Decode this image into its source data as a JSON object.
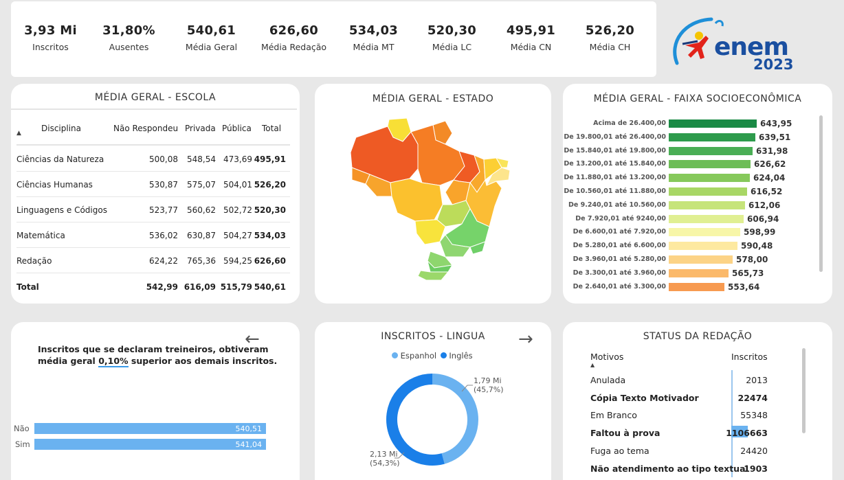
{
  "kpis": [
    {
      "value": "3,93 Mi",
      "label": "Inscritos"
    },
    {
      "value": "31,80%",
      "label": "Ausentes"
    },
    {
      "value": "540,61",
      "label": "Média Geral"
    },
    {
      "value": "626,60",
      "label": "Média Redação"
    },
    {
      "value": "534,03",
      "label": "Média MT"
    },
    {
      "value": "520,30",
      "label": "Média LC"
    },
    {
      "value": "495,91",
      "label": "Média CN"
    },
    {
      "value": "526,20",
      "label": "Média CH"
    }
  ],
  "logo": {
    "brand": "enem",
    "year": "2023"
  },
  "escola": {
    "title": "MÉDIA GERAL - ESCOLA",
    "columns": [
      "Disciplina",
      "Não Respondeu",
      "Privada",
      "Pública",
      "Total"
    ],
    "rows": [
      {
        "disciplina": "Ciências da Natureza",
        "nao": "500,08",
        "privada": "548,54",
        "publica": "473,69",
        "total": "495,91"
      },
      {
        "disciplina": "Ciências Humanas",
        "nao": "530,87",
        "privada": "575,07",
        "publica": "504,01",
        "total": "526,20"
      },
      {
        "disciplina": "Linguagens e Códigos",
        "nao": "523,77",
        "privada": "560,62",
        "publica": "502,72",
        "total": "520,30"
      },
      {
        "disciplina": "Matemática",
        "nao": "536,02",
        "privada": "630,87",
        "publica": "504,27",
        "total": "534,03"
      },
      {
        "disciplina": "Redação",
        "nao": "624,22",
        "privada": "765,36",
        "publica": "594,25",
        "total": "626,60"
      }
    ],
    "total": {
      "disciplina": "Total",
      "nao": "542,99",
      "privada": "616,09",
      "publica": "515,79",
      "total": "540,61"
    }
  },
  "estado": {
    "title": "MÉDIA GERAL - ESTADO"
  },
  "faixa": {
    "title": "MÉDIA GERAL - FAIXA SOCIOECONÔMICA",
    "rows": [
      {
        "label": "Acima de 26.400,00",
        "value": "643,95",
        "num": 643.95,
        "color": "#1a8a45"
      },
      {
        "label": "De 19.800,01 até 26.400,00",
        "value": "639,51",
        "num": 639.51,
        "color": "#2e9b4c"
      },
      {
        "label": "De 15.840,01 até 19.800,00",
        "value": "631,98",
        "num": 631.98,
        "color": "#4aae55"
      },
      {
        "label": "De 13.200,01 até 15.840,00",
        "value": "626,62",
        "num": 626.62,
        "color": "#6dbd57"
      },
      {
        "label": "De 11.880,01 até 13.200,00",
        "value": "624,04",
        "num": 624.04,
        "color": "#86c95b"
      },
      {
        "label": "De 10.560,01 até 11.880,00",
        "value": "616,52",
        "num": 616.52,
        "color": "#a8d765"
      },
      {
        "label": "De 9.240,01 até 10.560,00",
        "value": "612,06",
        "num": 612.06,
        "color": "#c6e47a"
      },
      {
        "label": "De 7.920,01 até 9240,00",
        "value": "606,94",
        "num": 606.94,
        "color": "#e0ef92"
      },
      {
        "label": "De 6.600,01 até 7.920,00",
        "value": "598,99",
        "num": 598.99,
        "color": "#f7f6a8"
      },
      {
        "label": "De 5.280,01 até 6.600,00",
        "value": "590,48",
        "num": 590.48,
        "color": "#fde9a0"
      },
      {
        "label": "De 3.960,01 até 5.280,00",
        "value": "578,00",
        "num": 578.0,
        "color": "#fcd386"
      },
      {
        "label": "De 3.300,01 até 3.960,00",
        "value": "565,73",
        "num": 565.73,
        "color": "#fbb96a"
      },
      {
        "label": "De 2.640,01 até 3.300,00",
        "value": "553,64",
        "num": 553.64,
        "color": "#f79a50"
      }
    ]
  },
  "treineiros": {
    "line1": "Inscritos que se declaram treineiros, obtiveram",
    "line2_pre": "média geral ",
    "line2_pct": "0,10%",
    "line2_post": " superior aos demais inscritos.",
    "bars": [
      {
        "label": "Não",
        "value": "540,51",
        "num": 540.51
      },
      {
        "label": "Sim",
        "value": "541,04",
        "num": 541.04
      }
    ]
  },
  "lingua": {
    "title": "INSCRITOS - LINGUA",
    "legend": [
      {
        "name": "Espanhol",
        "color": "#6ab2f0"
      },
      {
        "name": "Inglês",
        "color": "#1a7fe8"
      }
    ],
    "slices": [
      {
        "name": "Espanhol",
        "value": "1,79 Mi",
        "pct": "(45,7%)",
        "fraction": 0.457,
        "color": "#6ab2f0"
      },
      {
        "name": "Inglês",
        "value": "2,13 Mi",
        "pct": "(54,3%)",
        "fraction": 0.543,
        "color": "#1a7fe8"
      }
    ]
  },
  "redacao": {
    "title": "STATUS DA REDAÇÃO",
    "col_motivos": "Motivos",
    "col_inscritos": "Inscritos",
    "rows": [
      {
        "motivo": "Anulada",
        "inscritos": "2013",
        "bold": false
      },
      {
        "motivo": "Cópia Texto Motivador",
        "inscritos": "22474",
        "bold": true
      },
      {
        "motivo": "Em Branco",
        "inscritos": "55348",
        "bold": false
      },
      {
        "motivo": "Faltou à prova",
        "inscritos": "1106663",
        "bold": true
      },
      {
        "motivo": "Fuga ao tema",
        "inscritos": "24420",
        "bold": false
      },
      {
        "motivo": "Não atendimento ao tipo textual",
        "inscritos": "1903",
        "bold": true
      }
    ]
  },
  "nav": {
    "back": "←",
    "forward": "→"
  }
}
